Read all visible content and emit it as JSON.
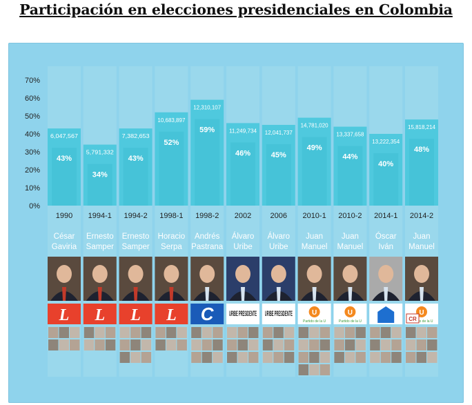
{
  "chart_data": {
    "type": "bar",
    "title": "Participación en elecciones presidenciales en Colombia",
    "xlabel": "",
    "ylabel": "",
    "ylim": [
      0,
      70
    ],
    "yticks": [
      "0%",
      "10%",
      "20%",
      "30%",
      "40%",
      "50%",
      "60%",
      "70%"
    ],
    "categories": [
      "1990",
      "1994-1",
      "1994-2",
      "1998-1",
      "1998-2",
      "2002",
      "2006",
      "2010-1",
      "2010-2",
      "2014-1",
      "2014-2"
    ],
    "values": [
      43,
      34,
      43,
      52,
      59,
      46,
      45,
      49,
      44,
      40,
      48
    ],
    "value_labels": [
      "43%",
      "34%",
      "43%",
      "52%",
      "59%",
      "46%",
      "45%",
      "49%",
      "44%",
      "40%",
      "48%"
    ],
    "votes": [
      "6,047,567",
      "5,791,332",
      "7,382,653",
      "10,683,897",
      "12,310,107",
      "11,249,734",
      "12,041,737",
      "14,781,020",
      "13,337,658",
      "13,222,354",
      "15,818,214"
    ],
    "winners": [
      [
        "César",
        "Gaviria"
      ],
      [
        "Ernesto",
        "Samper"
      ],
      [
        "Ernesto",
        "Samper"
      ],
      [
        "Horacio",
        "Serpa"
      ],
      [
        "Andrés",
        "Pastrana"
      ],
      [
        "Álvaro",
        "Uribe"
      ],
      [
        "Álvaro",
        "Uribe"
      ],
      [
        "Juan",
        "Manuel"
      ],
      [
        "Juan",
        "Manuel"
      ],
      [
        "Óscar",
        "Iván"
      ],
      [
        "Juan",
        "Manuel"
      ]
    ],
    "logos": [
      "L",
      "L",
      "L",
      "L",
      "C",
      "URIBE PRESIDENTE",
      "URIBE PRESIDENTE",
      "U",
      "U",
      "",
      "U"
    ],
    "logo_captions": [
      "",
      "",
      "",
      "",
      "",
      "",
      "",
      "Partido de la U",
      "Partido de la U",
      "",
      "Partido de la U"
    ],
    "extra_logo": "CR",
    "colors": {
      "panel": "#8fd3ec",
      "column": "#9ad8ec",
      "bar": "#4fc9de",
      "bar_top": "#63d4e6",
      "liberal_red": "#e8412c",
      "conservative_blue": "#1a5bb8",
      "u_orange": "#f4891f",
      "u_green": "#3c9b39"
    }
  }
}
